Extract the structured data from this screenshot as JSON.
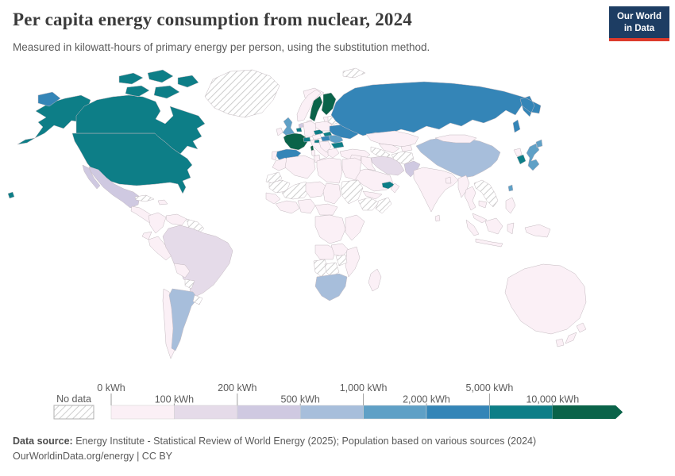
{
  "header": {
    "title": "Per capita energy consumption from nuclear, 2024",
    "subtitle": "Measured in kilowatt-hours of primary energy per person, using the substitution method.",
    "logo": {
      "line1": "Our World",
      "line2": "in Data"
    }
  },
  "legend": {
    "no_data_label": "No data",
    "tick_labels": [
      "0 kWh",
      "100 kWh",
      "200 kWh",
      "500 kWh",
      "1,000 kWh",
      "2,000 kWh",
      "5,000 kWh",
      "10,000 kWh"
    ],
    "tick_color": "#9d9d9d",
    "label_color": "#5b5b5b"
  },
  "chart_data": {
    "type": "choropleth",
    "title": "Per capita energy consumption from nuclear, 2024",
    "unit": "kWh per person (substitution method)",
    "legend_position": "bottom",
    "no_data_style": "diagonal-hatch",
    "bins": [
      {
        "range": "0–100 kWh",
        "color": "#fbf0f6"
      },
      {
        "range": "100–200 kWh",
        "color": "#e5dbe9"
      },
      {
        "range": "200–500 kWh",
        "color": "#cfc9e1"
      },
      {
        "range": "500–1,000 kWh",
        "color": "#a7bedb"
      },
      {
        "range": "1,000–2,000 kWh",
        "color": "#5fa0c6"
      },
      {
        "range": "2,000–5,000 kWh",
        "color": "#3485b7"
      },
      {
        "range": "5,000–10,000 kWh",
        "color": "#0d7e87"
      },
      {
        "range": "10,000+ kWh",
        "color": "#0a6349"
      }
    ],
    "countries": [
      {
        "id": "usa",
        "name": "United States",
        "bin": 6
      },
      {
        "id": "canada",
        "name": "Canada",
        "bin": 6
      },
      {
        "id": "greenland",
        "name": "Greenland",
        "bin": -1
      },
      {
        "id": "mexico",
        "name": "Mexico",
        "bin": 2
      },
      {
        "id": "central-america",
        "name": "Central America",
        "bin": 0
      },
      {
        "id": "cuba",
        "name": "Cuba",
        "bin": -1
      },
      {
        "id": "hispaniola",
        "name": "Hispaniola",
        "bin": 0
      },
      {
        "id": "colombia",
        "name": "Colombia",
        "bin": 0
      },
      {
        "id": "venezuela",
        "name": "Venezuela",
        "bin": 0
      },
      {
        "id": "guyanas",
        "name": "Guyana & Suriname",
        "bin": -1
      },
      {
        "id": "ecuador",
        "name": "Ecuador",
        "bin": 0
      },
      {
        "id": "peru",
        "name": "Peru",
        "bin": 0
      },
      {
        "id": "brazil",
        "name": "Brazil",
        "bin": 1
      },
      {
        "id": "bolivia",
        "name": "Bolivia",
        "bin": 0
      },
      {
        "id": "paraguay",
        "name": "Paraguay",
        "bin": -1
      },
      {
        "id": "chile",
        "name": "Chile",
        "bin": 0
      },
      {
        "id": "argentina",
        "name": "Argentina",
        "bin": 3
      },
      {
        "id": "uruguay",
        "name": "Uruguay",
        "bin": -1
      },
      {
        "id": "iceland",
        "name": "Iceland",
        "bin": 0
      },
      {
        "id": "norway",
        "name": "Norway",
        "bin": 0
      },
      {
        "id": "svalbard",
        "name": "Svalbard",
        "bin": -1
      },
      {
        "id": "sweden",
        "name": "Sweden",
        "bin": 7
      },
      {
        "id": "finland",
        "name": "Finland",
        "bin": 7
      },
      {
        "id": "baltics",
        "name": "Baltic states",
        "bin": 0
      },
      {
        "id": "denmark",
        "name": "Denmark",
        "bin": 0
      },
      {
        "id": "uk",
        "name": "United Kingdom",
        "bin": 4
      },
      {
        "id": "ireland",
        "name": "Ireland",
        "bin": 0
      },
      {
        "id": "netherlands",
        "name": "Netherlands",
        "bin": 2
      },
      {
        "id": "belgium",
        "name": "Belgium",
        "bin": 6
      },
      {
        "id": "germany",
        "name": "Germany",
        "bin": 0
      },
      {
        "id": "france",
        "name": "France",
        "bin": 7
      },
      {
        "id": "switzerland",
        "name": "Switzerland",
        "bin": 6
      },
      {
        "id": "spain",
        "name": "Spain",
        "bin": 5
      },
      {
        "id": "portugal",
        "name": "Portugal",
        "bin": 0
      },
      {
        "id": "italy",
        "name": "Italy",
        "bin": 0
      },
      {
        "id": "austria",
        "name": "Austria",
        "bin": 0
      },
      {
        "id": "czechia",
        "name": "Czechia",
        "bin": 6
      },
      {
        "id": "slovakia",
        "name": "Slovakia",
        "bin": 6
      },
      {
        "id": "poland",
        "name": "Poland",
        "bin": 0
      },
      {
        "id": "hungary",
        "name": "Hungary",
        "bin": 5
      },
      {
        "id": "slovenia",
        "name": "Slovenia",
        "bin": 6
      },
      {
        "id": "balkans",
        "name": "Western Balkans",
        "bin": 0
      },
      {
        "id": "romania",
        "name": "Romania",
        "bin": 4
      },
      {
        "id": "bulgaria",
        "name": "Bulgaria",
        "bin": 6
      },
      {
        "id": "greece",
        "name": "Greece",
        "bin": 0
      },
      {
        "id": "belarus",
        "name": "Belarus",
        "bin": -1
      },
      {
        "id": "ukraine",
        "name": "Ukraine",
        "bin": 5
      },
      {
        "id": "turkey",
        "name": "Turkey",
        "bin": 0
      },
      {
        "id": "russia",
        "name": "Russia",
        "bin": 5
      },
      {
        "id": "kazakhstan",
        "name": "Kazakhstan",
        "bin": 0
      },
      {
        "id": "uzbekistan",
        "name": "Uzbekistan",
        "bin": 0
      },
      {
        "id": "turkmenistan",
        "name": "Turkmenistan",
        "bin": -1
      },
      {
        "id": "kyrgyzstan",
        "name": "Kyrgyzstan & Tajikistan",
        "bin": 0
      },
      {
        "id": "afghanistan",
        "name": "Afghanistan",
        "bin": -1
      },
      {
        "id": "iran",
        "name": "Iran",
        "bin": 1
      },
      {
        "id": "iraq",
        "name": "Iraq",
        "bin": 0
      },
      {
        "id": "levant",
        "name": "Syria & Jordan",
        "bin": 0
      },
      {
        "id": "saudi-arabia",
        "name": "Saudi Arabia",
        "bin": 0
      },
      {
        "id": "uae",
        "name": "United Arab Emirates",
        "bin": 6
      },
      {
        "id": "oman",
        "name": "Oman",
        "bin": 0
      },
      {
        "id": "yemen",
        "name": "Yemen",
        "bin": 0
      },
      {
        "id": "pakistan",
        "name": "Pakistan",
        "bin": 2
      },
      {
        "id": "india",
        "name": "India",
        "bin": 0
      },
      {
        "id": "sri-lanka",
        "name": "Sri Lanka",
        "bin": 0
      },
      {
        "id": "bangladesh",
        "name": "Bangladesh",
        "bin": 0
      },
      {
        "id": "china",
        "name": "China",
        "bin": 3
      },
      {
        "id": "mongolia",
        "name": "Mongolia",
        "bin": 0
      },
      {
        "id": "north-korea",
        "name": "North Korea",
        "bin": 0
      },
      {
        "id": "south-korea",
        "name": "South Korea",
        "bin": 6
      },
      {
        "id": "japan",
        "name": "Japan",
        "bin": 4
      },
      {
        "id": "taiwan",
        "name": "Taiwan",
        "bin": 4
      },
      {
        "id": "myanmar",
        "name": "Myanmar",
        "bin": 0
      },
      {
        "id": "thailand",
        "name": "Thailand",
        "bin": 0
      },
      {
        "id": "laos-vietnam",
        "name": "Laos & Vietnam",
        "bin": -1
      },
      {
        "id": "cambodia",
        "name": "Cambodia",
        "bin": 0
      },
      {
        "id": "malaysia",
        "name": "Malaysia",
        "bin": 0
      },
      {
        "id": "indonesia",
        "name": "Indonesia",
        "bin": 0
      },
      {
        "id": "new-guinea",
        "name": "New Guinea",
        "bin": 0
      },
      {
        "id": "philippines",
        "name": "Philippines",
        "bin": 0
      },
      {
        "id": "australia",
        "name": "Australia",
        "bin": 0
      },
      {
        "id": "new-zealand",
        "name": "New Zealand",
        "bin": 0
      },
      {
        "id": "morocco",
        "name": "Morocco",
        "bin": 0
      },
      {
        "id": "algeria",
        "name": "Algeria",
        "bin": 0
      },
      {
        "id": "tunisia",
        "name": "Tunisia",
        "bin": 0
      },
      {
        "id": "libya",
        "name": "Libya",
        "bin": 0
      },
      {
        "id": "egypt",
        "name": "Egypt",
        "bin": 0
      },
      {
        "id": "western-sahara",
        "name": "Western Sahara",
        "bin": -1
      },
      {
        "id": "mauritania",
        "name": "Mauritania",
        "bin": -1
      },
      {
        "id": "mali",
        "name": "Mali",
        "bin": -1
      },
      {
        "id": "niger",
        "name": "Niger",
        "bin": 0
      },
      {
        "id": "chad",
        "name": "Chad",
        "bin": 0
      },
      {
        "id": "sudan",
        "name": "Sudan",
        "bin": -1
      },
      {
        "id": "ethiopia",
        "name": "Ethiopia",
        "bin": -1
      },
      {
        "id": "somalia",
        "name": "Somalia",
        "bin": -1
      },
      {
        "id": "senegal",
        "name": "Senegal & Guinea",
        "bin": 0
      },
      {
        "id": "west-africa",
        "name": "West African coast",
        "bin": 0
      },
      {
        "id": "nigeria",
        "name": "Nigeria",
        "bin": 0
      },
      {
        "id": "cameroon",
        "name": "Cameroon & Central Africa",
        "bin": 0
      },
      {
        "id": "drc",
        "name": "DR Congo",
        "bin": 0
      },
      {
        "id": "east-africa",
        "name": "Kenya & Tanzania",
        "bin": 0
      },
      {
        "id": "angola",
        "name": "Angola",
        "bin": 0
      },
      {
        "id": "zambia",
        "name": "Zambia",
        "bin": 0
      },
      {
        "id": "mozambique",
        "name": "Mozambique",
        "bin": 0
      },
      {
        "id": "zimbabwe",
        "name": "Zimbabwe",
        "bin": -1
      },
      {
        "id": "namibia",
        "name": "Namibia",
        "bin": -1
      },
      {
        "id": "botswana",
        "name": "Botswana",
        "bin": -1
      },
      {
        "id": "south-africa",
        "name": "South Africa",
        "bin": 3
      },
      {
        "id": "madagascar",
        "name": "Madagascar",
        "bin": 0
      }
    ]
  },
  "footer": {
    "source_label": "Data source:",
    "source_text": " Energy Institute - Statistical Review of World Energy (2025); Population based on various sources (2024)",
    "credit_line": "OurWorldinData.org/energy | CC BY"
  }
}
